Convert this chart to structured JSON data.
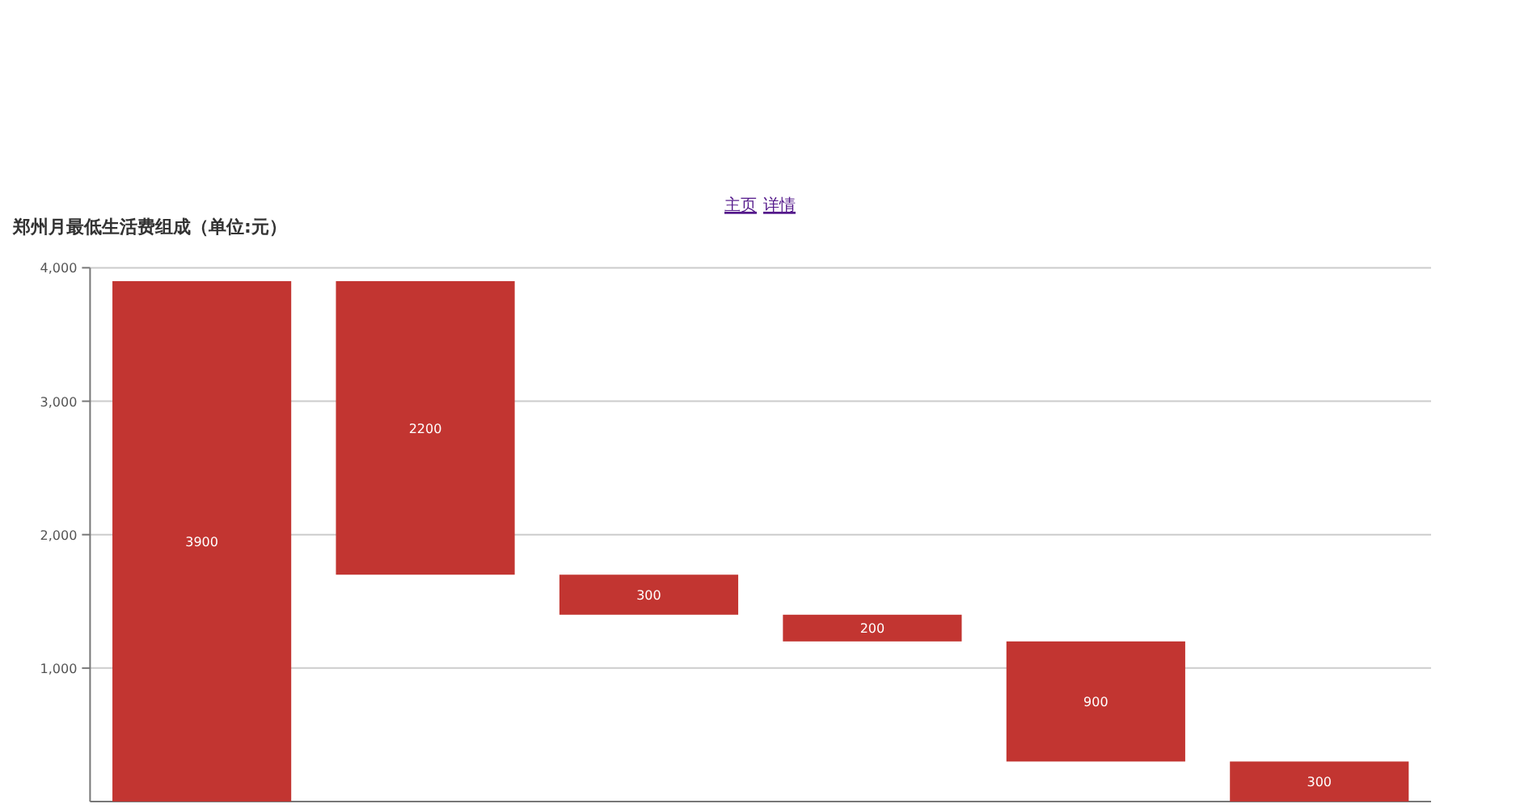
{
  "chart_data": {
    "type": "bar",
    "title": "郑州月最低生活费组成（单位:元）",
    "annotations": [
      "主页",
      "详情"
    ],
    "categories": [
      null,
      null,
      null,
      null,
      null,
      null
    ],
    "values": [
      3900,
      2200,
      300,
      200,
      900,
      300
    ],
    "base": [
      0,
      1700,
      1400,
      1200,
      300,
      0
    ],
    "color": "#c23531",
    "ylim": [
      0,
      4000
    ],
    "yticks": [
      {
        "value": 1000,
        "label": "1,000"
      },
      {
        "value": 2000,
        "label": "2,000"
      },
      {
        "value": 3000,
        "label": "3,000"
      },
      {
        "value": 4000,
        "label": "4,000"
      }
    ],
    "grid": "y",
    "data_labels": true
  }
}
